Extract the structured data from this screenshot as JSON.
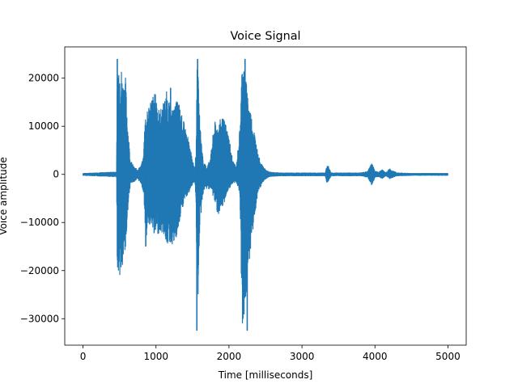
{
  "chart_data": {
    "type": "line",
    "title": "Voice Signal",
    "xlabel": "Time [milliseconds]",
    "ylabel": "Voice amplitude",
    "xlim": [
      -250,
      5250
    ],
    "ylim": [
      -35500,
      26500
    ],
    "xticks": [
      0,
      1000,
      2000,
      3000,
      4000,
      5000
    ],
    "xtick_labels": [
      "0",
      "1000",
      "2000",
      "3000",
      "4000",
      "5000"
    ],
    "yticks": [
      -30000,
      -20000,
      -10000,
      0,
      10000,
      20000
    ],
    "ytick_labels": [
      "−30000",
      "−20000",
      "−10000",
      "0",
      "10000",
      "20000"
    ],
    "grid": false,
    "series": [
      {
        "color": "#1f77b4",
        "envelope": {
          "x": [
            0,
            460,
            470,
            480,
            500,
            520,
            540,
            560,
            580,
            600,
            620,
            650,
            700,
            750,
            800,
            830,
            850,
            860,
            880,
            900,
            950,
            1000,
            1050,
            1100,
            1150,
            1200,
            1250,
            1300,
            1350,
            1400,
            1450,
            1500,
            1530,
            1550,
            1560,
            1570,
            1600,
            1650,
            1700,
            1750,
            1800,
            1850,
            1900,
            1950,
            2000,
            2050,
            2100,
            2150,
            2180,
            2200,
            2220,
            2250,
            2300,
            2350,
            2400,
            2450,
            2500,
            2550,
            2600,
            2700,
            2800,
            3000,
            3200,
            3320,
            3340,
            3360,
            3400,
            3600,
            3800,
            3900,
            3950,
            3970,
            4000,
            4050,
            4100,
            4150,
            4200,
            4300,
            4500,
            4700,
            4900,
            5000
          ],
          "upper": [
            200,
            500,
            22000,
            24000,
            24000,
            23500,
            20000,
            19500,
            21000,
            15000,
            9000,
            3000,
            1500,
            1000,
            2000,
            4000,
            14000,
            12000,
            13000,
            15000,
            16500,
            17000,
            13000,
            15000,
            17500,
            13500,
            14000,
            16000,
            12500,
            10000,
            7000,
            3000,
            1500,
            5000,
            21000,
            24000,
            11000,
            2500,
            1500,
            4000,
            11000,
            10500,
            12000,
            11000,
            8000,
            3000,
            1500,
            10000,
            24000,
            24000,
            21000,
            18000,
            13000,
            9000,
            4000,
            2000,
            1000,
            500,
            400,
            300,
            300,
            300,
            300,
            300,
            2000,
            1800,
            300,
            300,
            300,
            600,
            2200,
            2000,
            600,
            500,
            1000,
            300,
            1200,
            300,
            200,
            200,
            200,
            200
          ],
          "lower": [
            -200,
            -500,
            -20000,
            -20000,
            -21500,
            -21000,
            -20000,
            -18000,
            -17000,
            -12000,
            -6000,
            -2000,
            -1500,
            -1000,
            -2000,
            -4000,
            -10000,
            -15000,
            -11000,
            -10000,
            -12000,
            -13000,
            -12000,
            -12500,
            -14500,
            -14500,
            -15000,
            -12500,
            -8000,
            -5000,
            -4000,
            -2000,
            -1500,
            -7000,
            -32000,
            -30000,
            -11000,
            -3500,
            -3000,
            -3000,
            -5500,
            -8500,
            -8000,
            -5000,
            -3000,
            -2000,
            -1500,
            -4000,
            -32000,
            -31000,
            -29000,
            -22000,
            -15000,
            -9000,
            -4000,
            -2000,
            -1000,
            -500,
            -400,
            -300,
            -300,
            -300,
            -300,
            -300,
            -2000,
            -1500,
            -300,
            -300,
            -300,
            -600,
            -2400,
            -2000,
            -600,
            -500,
            -900,
            -300,
            -900,
            -300,
            -200,
            -200,
            -200,
            -200
          ]
        },
        "spikes": [
          {
            "x": 470,
            "value": 24000
          },
          {
            "x": 860,
            "value": -15000
          },
          {
            "x": 1560,
            "value": -32500
          },
          {
            "x": 1570,
            "value": 24000
          },
          {
            "x": 2250,
            "value": -32500
          },
          {
            "x": 2220,
            "value": 24000
          },
          {
            "x": 1200,
            "value": 18000
          }
        ]
      }
    ]
  }
}
